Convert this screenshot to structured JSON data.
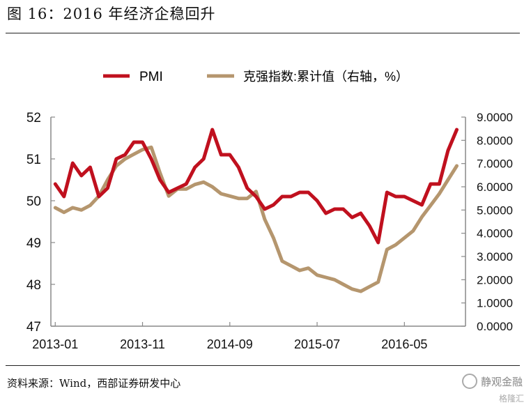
{
  "header": {
    "title": "图 16：2016 年经济企稳回升"
  },
  "footer": {
    "source": "资料来源：Wind，西部证券研发中心",
    "watermark_main": "静观金融",
    "watermark_sub": "格隆汇"
  },
  "chart_data": {
    "type": "line",
    "x_tick_labels": [
      "2013-01",
      "2013-11",
      "2014-09",
      "2015-07",
      "2016-05"
    ],
    "legend": [
      "PMI",
      "克强指数:累计值（右轴，%）"
    ],
    "legend_position": "top",
    "grid": false,
    "y_left": {
      "lim": [
        47,
        52
      ],
      "ticks": [
        "47",
        "48",
        "49",
        "50",
        "51",
        "52"
      ]
    },
    "y_right": {
      "lim": [
        0,
        9
      ],
      "ticks": [
        "0.0000",
        "1.0000",
        "2.0000",
        "3.0000",
        "4.0000",
        "5.0000",
        "6.0000",
        "7.0000",
        "8.0000",
        "9.0000"
      ]
    },
    "series": [
      {
        "name": "PMI",
        "axis": "left",
        "color": "#c0101e",
        "start": "2013-01",
        "values": [
          50.4,
          50.1,
          50.9,
          50.6,
          50.8,
          50.1,
          50.3,
          51.0,
          51.1,
          51.4,
          51.4,
          51.0,
          50.5,
          50.2,
          50.3,
          50.4,
          50.8,
          51.0,
          51.7,
          51.1,
          51.1,
          50.8,
          50.3,
          50.1,
          49.8,
          49.9,
          50.1,
          50.1,
          50.2,
          50.2,
          50.0,
          49.7,
          49.8,
          49.8,
          49.6,
          49.7,
          49.4,
          49.0,
          50.2,
          50.1,
          50.1,
          50.0,
          49.9,
          50.4,
          50.4,
          51.2,
          51.7
        ]
      },
      {
        "name": "克强指数:累计值（右轴，%）",
        "axis": "right",
        "color": "#b5966e",
        "start": "2013-01",
        "values": [
          5.1,
          4.9,
          5.1,
          5.0,
          5.2,
          5.6,
          6.3,
          6.9,
          7.2,
          7.4,
          7.6,
          7.7,
          6.6,
          5.6,
          5.9,
          5.9,
          6.1,
          6.2,
          6.0,
          5.7,
          5.6,
          5.5,
          5.5,
          5.8,
          4.6,
          3.8,
          2.8,
          2.6,
          2.4,
          2.5,
          2.2,
          2.1,
          2.0,
          1.8,
          1.6,
          1.5,
          1.7,
          1.9,
          3.3,
          3.5,
          3.8,
          4.1,
          4.7,
          5.2,
          5.7,
          6.3,
          6.9
        ]
      }
    ]
  }
}
